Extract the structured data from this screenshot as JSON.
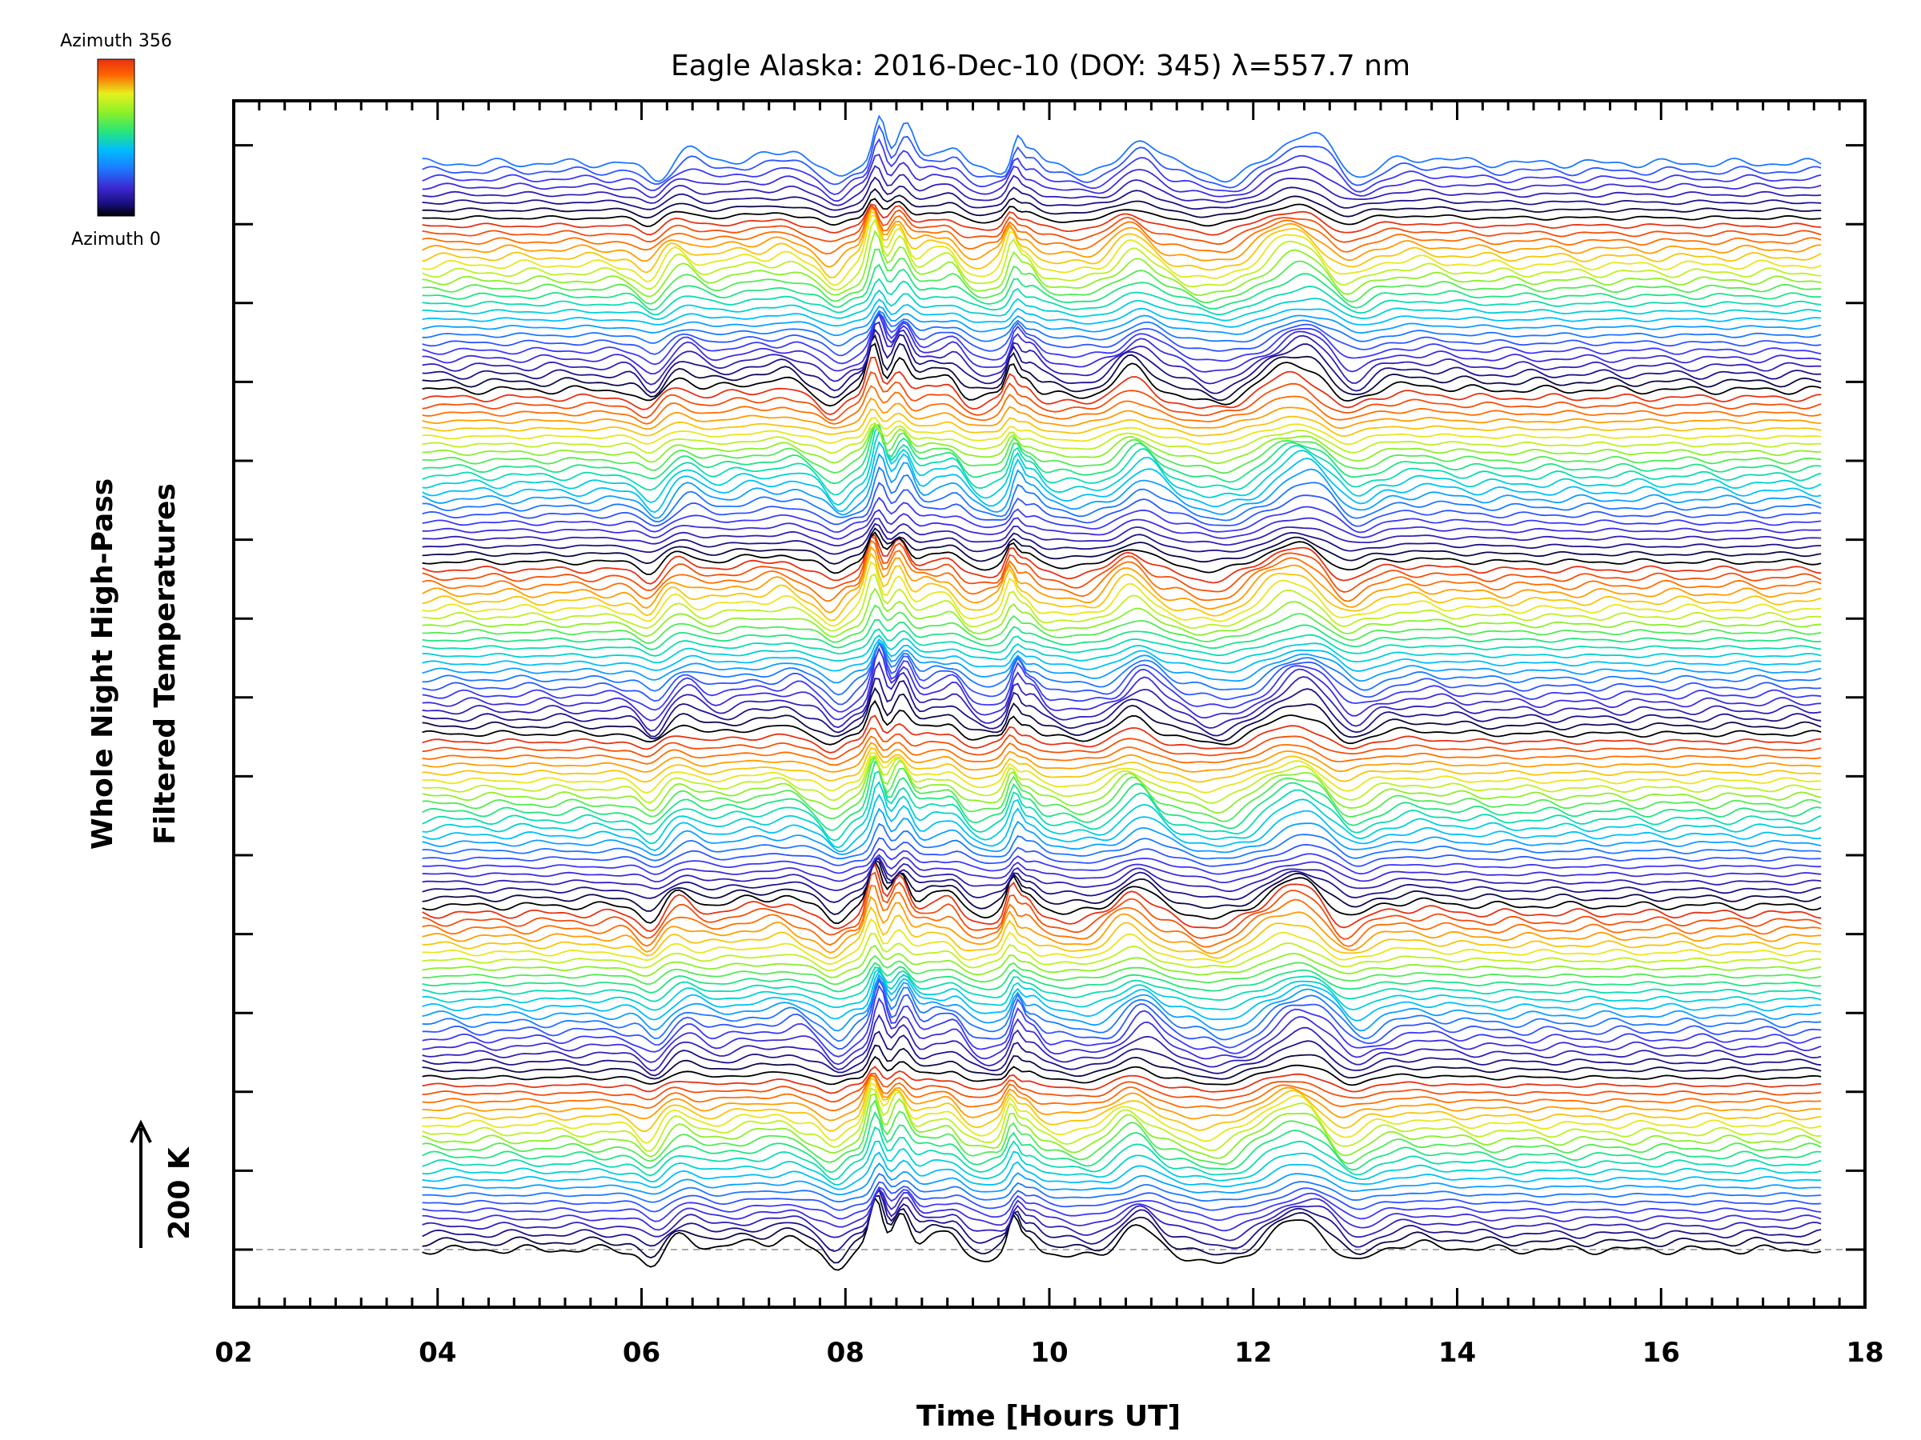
{
  "chart_data": {
    "type": "line",
    "title": "Eagle Alaska: 2016-Dec-10 (DOY: 345) λ=557.7 nm",
    "xlabel": "Time [Hours UT]",
    "ylabel_line1": "Whole Night High-Pass",
    "ylabel_line2": "Filtered Temperatures",
    "xlim": [
      2,
      18
    ],
    "x_tick_labels": [
      "02",
      "04",
      "06",
      "08",
      "10",
      "12",
      "14",
      "16",
      "18"
    ],
    "x_ticks": [
      2,
      4,
      6,
      8,
      10,
      12,
      14,
      16,
      18
    ],
    "data_x_range": [
      3.85,
      17.6
    ],
    "scale_bar_label": "200 K",
    "colorbar": {
      "max_label": "Azimuth 356",
      "min_label": "Azimuth 0",
      "min": 0,
      "max": 356
    },
    "colors": {
      "colormap": [
        "#000000",
        "#1a0f80",
        "#3c28d0",
        "#3c3cff",
        "#1e78ff",
        "#00bcff",
        "#00d8c8",
        "#28e678",
        "#8cf028",
        "#e6f01e",
        "#ffb400",
        "#ff6400",
        "#e63214"
      ],
      "baseline": "#aaaaaa"
    },
    "series_count": 140,
    "azimuth_cycle_length": 22,
    "common_signal_features": [
      {
        "time": 6.1,
        "amplitude": -0.35,
        "width": 0.1
      },
      {
        "time": 6.4,
        "amplitude": 0.3,
        "width": 0.12
      },
      {
        "time": 7.1,
        "amplitude": 0.15,
        "width": 0.2
      },
      {
        "time": 7.45,
        "amplitude": 0.2,
        "width": 0.12
      },
      {
        "time": 7.9,
        "amplitude": -0.35,
        "width": 0.1
      },
      {
        "time": 8.3,
        "amplitude": 1.0,
        "width": 0.06
      },
      {
        "time": 8.55,
        "amplitude": 0.75,
        "width": 0.08
      },
      {
        "time": 8.85,
        "amplitude": 0.25,
        "width": 0.1
      },
      {
        "time": 9.05,
        "amplitude": 0.3,
        "width": 0.08
      },
      {
        "time": 9.35,
        "amplitude": -0.2,
        "width": 0.15
      },
      {
        "time": 9.65,
        "amplitude": 0.6,
        "width": 0.05
      },
      {
        "time": 9.8,
        "amplitude": 0.3,
        "width": 0.07
      },
      {
        "time": 10.3,
        "amplitude": -0.15,
        "width": 0.25
      },
      {
        "time": 10.85,
        "amplitude": 0.5,
        "width": 0.15
      },
      {
        "time": 11.65,
        "amplitude": -0.3,
        "width": 0.25
      },
      {
        "time": 12.45,
        "amplitude": 0.6,
        "width": 0.25
      },
      {
        "time": 12.95,
        "amplitude": -0.35,
        "width": 0.15
      },
      {
        "time": 13.6,
        "amplitude": 0.1,
        "width": 0.3
      }
    ]
  }
}
